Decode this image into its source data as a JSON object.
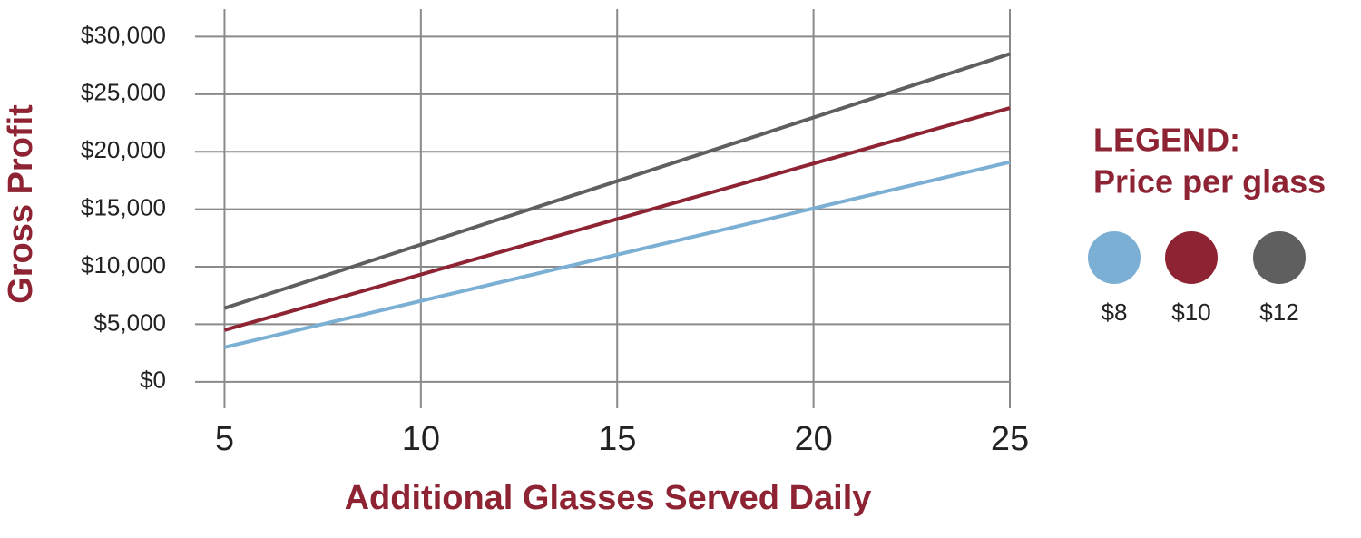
{
  "chart_data": {
    "type": "line",
    "x_label": "Additional Glasses Served Daily",
    "y_label": "Gross Profit",
    "legend_title": "LEGEND:",
    "legend_subtitle": "Price per glass",
    "legend_position": "right",
    "grid": true,
    "x": [
      5,
      25
    ],
    "series": [
      {
        "name": "$8",
        "color": "#7bafd4",
        "values": [
          3000,
          19100
        ]
      },
      {
        "name": "$10",
        "color": "#8e2433",
        "values": [
          4500,
          23800
        ]
      },
      {
        "name": "$12",
        "color": "#5f5f5f",
        "values": [
          6400,
          28500
        ]
      }
    ],
    "xlim": [
      4.25,
      25
    ],
    "xticks": [
      5,
      10,
      15,
      20,
      25
    ],
    "ylim": [
      -2300,
      32400
    ],
    "yticks": [
      {
        "value": 0,
        "label": "$0"
      },
      {
        "value": 5000,
        "label": "$5,000"
      },
      {
        "value": 10000,
        "label": "$10,000"
      },
      {
        "value": 15000,
        "label": "$15,000"
      },
      {
        "value": 20000,
        "label": "$20,000"
      },
      {
        "value": 25000,
        "label": "$25,000"
      },
      {
        "value": 30000,
        "label": "$30,000"
      }
    ]
  }
}
